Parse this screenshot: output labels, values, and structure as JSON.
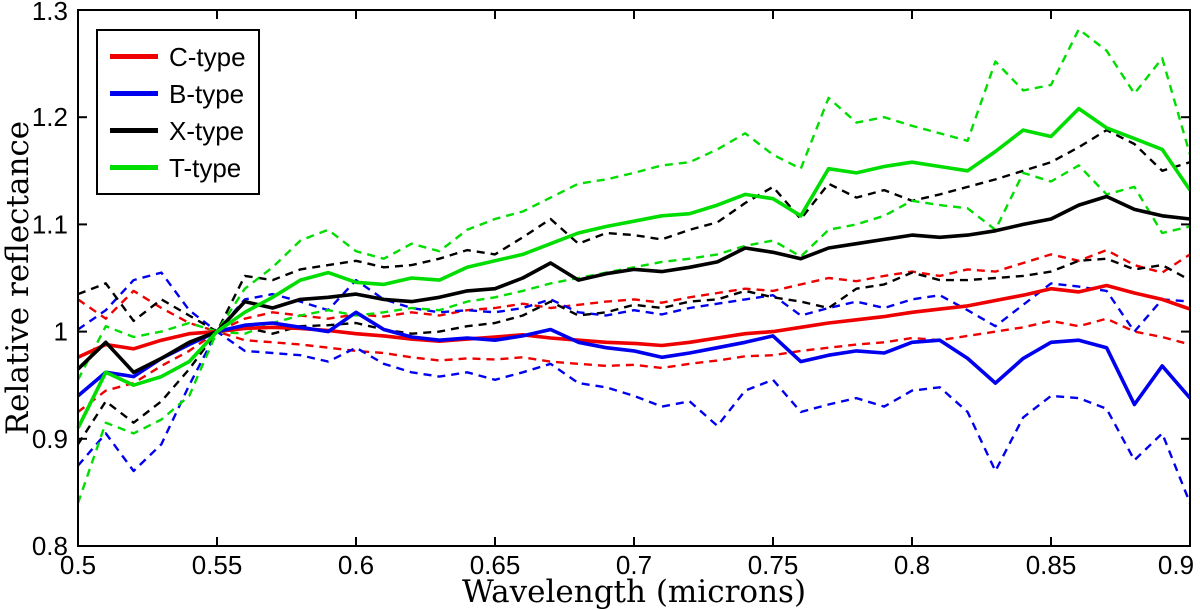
{
  "chart_data": {
    "type": "line",
    "title": "",
    "xlabel": "Wavelength (microns)",
    "ylabel": "Relative reflectance",
    "xlim": [
      0.5,
      0.9
    ],
    "ylim": [
      0.8,
      1.3
    ],
    "grid": false,
    "legend_position": "top-left",
    "xticks": {
      "values": [
        0.5,
        0.55,
        0.6,
        0.65,
        0.7,
        0.75,
        0.8,
        0.85,
        0.9
      ],
      "labels": [
        "0.5",
        "0.55",
        "0.6",
        "0.65",
        "0.7",
        "0.75",
        "0.8",
        "0.85",
        "0.9"
      ]
    },
    "yticks": {
      "values": [
        0.8,
        0.9,
        1.0,
        1.1,
        1.2,
        1.3
      ],
      "labels": [
        "0.8",
        "0.9",
        "1",
        "1.1",
        "1.2",
        "1.3"
      ]
    },
    "x": [
      0.5,
      0.51,
      0.52,
      0.53,
      0.54,
      0.55,
      0.56,
      0.57,
      0.58,
      0.59,
      0.6,
      0.61,
      0.62,
      0.63,
      0.64,
      0.65,
      0.66,
      0.67,
      0.68,
      0.69,
      0.7,
      0.71,
      0.72,
      0.73,
      0.74,
      0.75,
      0.76,
      0.77,
      0.78,
      0.79,
      0.8,
      0.81,
      0.82,
      0.83,
      0.84,
      0.85,
      0.86,
      0.87,
      0.88,
      0.89,
      0.9
    ],
    "series": [
      {
        "name": "C-type",
        "color": "#ee0000",
        "mean": [
          0.976,
          0.988,
          0.984,
          0.992,
          0.998,
          1.0,
          1.003,
          1.004,
          1.003,
          1.001,
          0.998,
          0.996,
          0.993,
          0.991,
          0.993,
          0.995,
          0.997,
          0.994,
          0.992,
          0.99,
          0.989,
          0.987,
          0.99,
          0.994,
          0.998,
          1.0,
          1.004,
          1.008,
          1.011,
          1.014,
          1.018,
          1.021,
          1.024,
          1.029,
          1.034,
          1.04,
          1.037,
          1.043,
          1.036,
          1.03,
          1.021
        ],
        "upper": [
          1.03,
          1.012,
          1.038,
          1.022,
          1.008,
          1.0,
          1.012,
          1.018,
          1.015,
          1.012,
          1.016,
          1.014,
          1.018,
          1.015,
          1.02,
          1.022,
          1.026,
          1.022,
          1.025,
          1.028,
          1.03,
          1.027,
          1.032,
          1.036,
          1.04,
          1.038,
          1.044,
          1.05,
          1.047,
          1.052,
          1.056,
          1.052,
          1.058,
          1.056,
          1.064,
          1.072,
          1.066,
          1.076,
          1.062,
          1.055,
          1.072
        ],
        "lower": [
          0.925,
          0.945,
          0.952,
          0.968,
          0.982,
          1.0,
          0.992,
          0.99,
          0.988,
          0.985,
          0.982,
          0.98,
          0.976,
          0.973,
          0.975,
          0.974,
          0.976,
          0.972,
          0.97,
          0.968,
          0.969,
          0.966,
          0.97,
          0.973,
          0.977,
          0.978,
          0.982,
          0.985,
          0.988,
          0.99,
          0.994,
          0.992,
          0.996,
          1.0,
          1.004,
          1.01,
          1.005,
          1.012,
          1.0,
          0.995,
          0.988
        ]
      },
      {
        "name": "B-type",
        "color": "#0000ee",
        "mean": [
          0.94,
          0.962,
          0.958,
          0.975,
          0.988,
          1.0,
          1.006,
          1.008,
          1.004,
          1.0,
          1.018,
          1.002,
          0.995,
          0.992,
          0.994,
          0.992,
          0.996,
          1.002,
          0.99,
          0.985,
          0.982,
          0.976,
          0.98,
          0.985,
          0.99,
          0.996,
          0.972,
          0.978,
          0.982,
          0.98,
          0.99,
          0.992,
          0.975,
          0.952,
          0.975,
          0.99,
          0.992,
          0.985,
          0.932,
          0.968,
          0.938
        ],
        "upper": [
          1.002,
          1.02,
          1.048,
          1.055,
          1.02,
          1.0,
          1.03,
          1.035,
          1.028,
          1.02,
          1.048,
          1.03,
          1.022,
          1.018,
          1.02,
          1.018,
          1.022,
          1.03,
          1.018,
          1.015,
          1.02,
          1.016,
          1.022,
          1.026,
          1.03,
          1.034,
          1.015,
          1.022,
          1.028,
          1.022,
          1.03,
          1.034,
          1.02,
          1.005,
          1.025,
          1.045,
          1.042,
          1.038,
          1.0,
          1.03,
          1.028
        ],
        "lower": [
          0.875,
          0.905,
          0.87,
          0.895,
          0.95,
          1.0,
          0.982,
          0.98,
          0.978,
          0.972,
          0.985,
          0.97,
          0.962,
          0.958,
          0.962,
          0.955,
          0.962,
          0.97,
          0.952,
          0.948,
          0.94,
          0.93,
          0.935,
          0.912,
          0.945,
          0.955,
          0.925,
          0.932,
          0.938,
          0.93,
          0.945,
          0.948,
          0.925,
          0.87,
          0.92,
          0.94,
          0.938,
          0.928,
          0.88,
          0.905,
          0.84
        ]
      },
      {
        "name": "X-type",
        "color": "#000000",
        "mean": [
          0.965,
          0.99,
          0.962,
          0.975,
          0.99,
          1.0,
          1.028,
          1.022,
          1.03,
          1.032,
          1.035,
          1.03,
          1.028,
          1.032,
          1.038,
          1.04,
          1.05,
          1.064,
          1.048,
          1.054,
          1.058,
          1.056,
          1.06,
          1.065,
          1.078,
          1.074,
          1.068,
          1.078,
          1.082,
          1.086,
          1.09,
          1.088,
          1.09,
          1.094,
          1.1,
          1.105,
          1.118,
          1.126,
          1.114,
          1.108,
          1.105
        ],
        "upper": [
          1.035,
          1.045,
          1.01,
          1.03,
          1.015,
          1.0,
          1.052,
          1.048,
          1.058,
          1.062,
          1.066,
          1.06,
          1.062,
          1.068,
          1.076,
          1.072,
          1.088,
          1.105,
          1.082,
          1.092,
          1.09,
          1.086,
          1.095,
          1.102,
          1.12,
          1.135,
          1.105,
          1.138,
          1.125,
          1.132,
          1.122,
          1.128,
          1.135,
          1.142,
          1.15,
          1.158,
          1.172,
          1.188,
          1.175,
          1.15,
          1.158
        ],
        "lower": [
          0.895,
          0.935,
          0.915,
          0.935,
          0.965,
          1.0,
          1.004,
          0.998,
          1.005,
          1.006,
          1.008,
          1.002,
          0.998,
          1.0,
          1.005,
          1.008,
          1.015,
          1.028,
          1.015,
          1.018,
          1.025,
          1.022,
          1.028,
          1.03,
          1.038,
          1.032,
          1.028,
          1.022,
          1.04,
          1.044,
          1.055,
          1.048,
          1.048,
          1.05,
          1.052,
          1.056,
          1.066,
          1.068,
          1.058,
          1.062,
          1.048
        ]
      },
      {
        "name": "T-type",
        "color": "#00dd00",
        "mean": [
          0.91,
          0.962,
          0.95,
          0.958,
          0.972,
          1.0,
          1.018,
          1.032,
          1.048,
          1.055,
          1.046,
          1.044,
          1.05,
          1.048,
          1.06,
          1.066,
          1.072,
          1.082,
          1.092,
          1.098,
          1.103,
          1.108,
          1.11,
          1.118,
          1.128,
          1.124,
          1.108,
          1.152,
          1.148,
          1.154,
          1.158,
          1.154,
          1.15,
          1.168,
          1.188,
          1.182,
          1.208,
          1.19,
          1.18,
          1.17,
          1.132
        ],
        "upper": [
          0.955,
          1.005,
          0.995,
          1.0,
          1.008,
          1.0,
          1.04,
          1.06,
          1.085,
          1.095,
          1.075,
          1.068,
          1.082,
          1.075,
          1.095,
          1.105,
          1.112,
          1.125,
          1.138,
          1.142,
          1.148,
          1.155,
          1.158,
          1.17,
          1.185,
          1.165,
          1.152,
          1.218,
          1.195,
          1.2,
          1.192,
          1.185,
          1.178,
          1.252,
          1.225,
          1.23,
          1.282,
          1.262,
          1.222,
          1.255,
          1.165
        ],
        "lower": [
          0.84,
          0.915,
          0.905,
          0.918,
          0.94,
          1.0,
          0.998,
          1.008,
          1.015,
          1.02,
          1.015,
          1.018,
          1.022,
          1.02,
          1.028,
          1.032,
          1.038,
          1.045,
          1.05,
          1.055,
          1.06,
          1.065,
          1.068,
          1.072,
          1.08,
          1.085,
          1.07,
          1.095,
          1.1,
          1.108,
          1.122,
          1.118,
          1.115,
          1.095,
          1.148,
          1.14,
          1.155,
          1.128,
          1.135,
          1.092,
          1.098
        ]
      }
    ]
  }
}
